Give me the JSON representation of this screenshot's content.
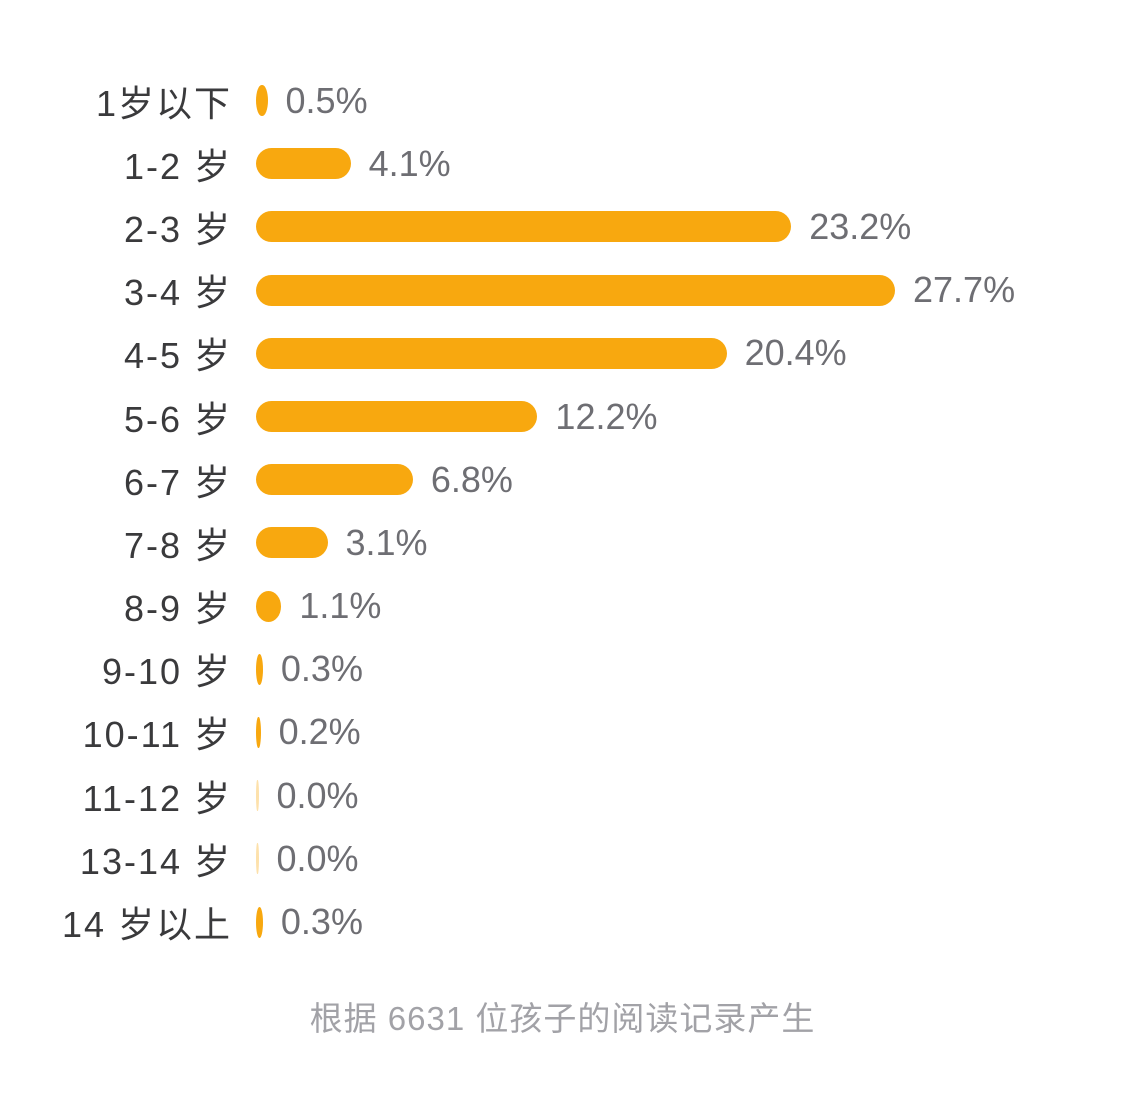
{
  "chart_data": {
    "type": "bar",
    "orientation": "horizontal",
    "categories": [
      "1岁以下",
      "1-2 岁",
      "2-3 岁",
      "3-4 岁",
      "4-5 岁",
      "5-6 岁",
      "6-7 岁",
      "7-8 岁",
      "8-9 岁",
      "9-10 岁",
      "10-11 岁",
      "11-12 岁",
      "13-14 岁",
      "14 岁以上"
    ],
    "values": [
      0.5,
      4.1,
      23.2,
      27.7,
      20.4,
      12.2,
      6.8,
      3.1,
      1.1,
      0.3,
      0.2,
      0.0,
      0.0,
      0.3
    ],
    "value_labels": [
      "0.5%",
      "4.1%",
      "23.2%",
      "27.7%",
      "20.4%",
      "12.2%",
      "6.8%",
      "3.1%",
      "1.1%",
      "0.3%",
      "0.2%",
      "0.0%",
      "0.0%",
      "0.3%"
    ],
    "unit": "%",
    "xlim": [
      0,
      27.7
    ],
    "axis_visible": false,
    "grid": false,
    "legend_position": "none",
    "bar_color": "#F8A80F",
    "value_label_position": "right-of-bar"
  },
  "footer": {
    "caption": "根据 6631 位孩子的阅读记录产生"
  },
  "colors": {
    "background": "#ffffff",
    "bar": "#F8A80F",
    "category_label": "#3A3A3C",
    "value_label": "#6E6E73",
    "caption": "#A2A2A7"
  }
}
